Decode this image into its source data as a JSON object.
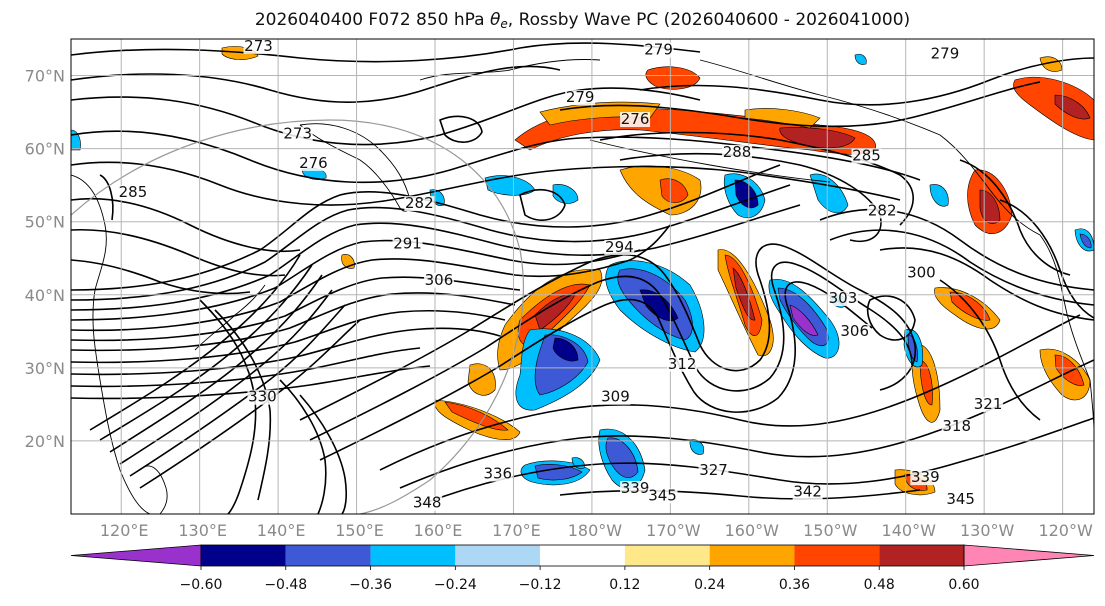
{
  "title": {
    "prefix": "2026040400 F072 850 hPa ",
    "theta": "θ",
    "theta_sub": "e",
    "suffix": ", Rossby Wave PC (2026040600 - 2026041000)"
  },
  "map": {
    "lat_labels": [
      "70°N",
      "60°N",
      "50°N",
      "40°N",
      "30°N",
      "20°N"
    ],
    "lat_values": [
      70,
      60,
      50,
      40,
      30,
      20
    ],
    "lat_range": [
      10,
      75
    ],
    "lon_labels": [
      "120°E",
      "130°E",
      "140°E",
      "150°E",
      "160°E",
      "170°E",
      "180°W",
      "170°W",
      "160°W",
      "150°W",
      "140°W",
      "130°W",
      "120°W"
    ],
    "lon_values": [
      120,
      130,
      140,
      150,
      160,
      170,
      180,
      190,
      200,
      210,
      220,
      230,
      240
    ],
    "lon_range": [
      120,
      240
    ],
    "grid": true,
    "contour_labels": [
      {
        "text": "273",
        "lon": 137.5,
        "lat": 73.5
      },
      {
        "text": "279",
        "lon": 188.5,
        "lat": 73.0
      },
      {
        "text": "279",
        "lon": 178.5,
        "lat": 66.5
      },
      {
        "text": "279",
        "lon": 225.0,
        "lat": 72.5
      },
      {
        "text": "273",
        "lon": 142.5,
        "lat": 61.5
      },
      {
        "text": "276",
        "lon": 144.5,
        "lat": 57.5
      },
      {
        "text": "276",
        "lon": 185.5,
        "lat": 63.5
      },
      {
        "text": "288",
        "lon": 198.5,
        "lat": 59.0
      },
      {
        "text": "285",
        "lon": 215.0,
        "lat": 58.5
      },
      {
        "text": "282",
        "lon": 158.0,
        "lat": 52.0
      },
      {
        "text": "282",
        "lon": 217.0,
        "lat": 51.0
      },
      {
        "text": "291",
        "lon": 156.5,
        "lat": 46.5
      },
      {
        "text": "294",
        "lon": 183.5,
        "lat": 46.0
      },
      {
        "text": "306",
        "lon": 160.5,
        "lat": 41.5
      },
      {
        "text": "303",
        "lon": 212.0,
        "lat": 39.0
      },
      {
        "text": "300",
        "lon": 222.0,
        "lat": 42.5
      },
      {
        "text": "306",
        "lon": 213.5,
        "lat": 34.5
      },
      {
        "text": "309",
        "lon": 183.0,
        "lat": 25.5
      },
      {
        "text": "312",
        "lon": 191.5,
        "lat": 30.0
      },
      {
        "text": "330",
        "lon": 138.0,
        "lat": 25.5
      },
      {
        "text": "321",
        "lon": 230.5,
        "lat": 24.5
      },
      {
        "text": "318",
        "lon": 226.5,
        "lat": 21.5
      },
      {
        "text": "327",
        "lon": 195.5,
        "lat": 15.5
      },
      {
        "text": "336",
        "lon": 168.0,
        "lat": 15.0
      },
      {
        "text": "339",
        "lon": 185.5,
        "lat": 13.0
      },
      {
        "text": "345",
        "lon": 189.0,
        "lat": 12.0
      },
      {
        "text": "342",
        "lon": 207.5,
        "lat": 12.5
      },
      {
        "text": "348",
        "lon": 159.0,
        "lat": 11.0
      },
      {
        "text": "345",
        "lon": 227.0,
        "lat": 11.5
      },
      {
        "text": "339",
        "lon": 222.5,
        "lat": 14.5
      },
      {
        "text": "285",
        "lon": 121.5,
        "lat": 53.5
      }
    ]
  },
  "colorbar": {
    "ticks": [
      "−0.60",
      "−0.48",
      "−0.36",
      "−0.24",
      "−0.12",
      "0.12",
      "0.24",
      "0.36",
      "0.48",
      "0.60"
    ],
    "boundaries": [
      -0.6,
      -0.48,
      -0.36,
      -0.24,
      -0.12,
      0.12,
      0.24,
      0.36,
      0.48,
      0.6
    ],
    "colors": [
      "#9932cc",
      "#00008b",
      "#3d59d6",
      "#00bfff",
      "#add8f5",
      "#ffffff",
      "#ffe88a",
      "#ffa500",
      "#ff4500",
      "#b22222",
      "#ff85b5"
    ],
    "extend": "both"
  },
  "colors": {
    "neg_strong": "#3d59d6",
    "neg_mid": "#00bfff",
    "neg_weak": "#add8f5",
    "neg_extreme": "#00008b",
    "pos_weak": "#ffe88a",
    "pos_mid": "#ffa500",
    "pos_strong": "#ff4500",
    "pos_extreme": "#b22222",
    "contour": "#000000",
    "grid": "#b5b5b5"
  }
}
